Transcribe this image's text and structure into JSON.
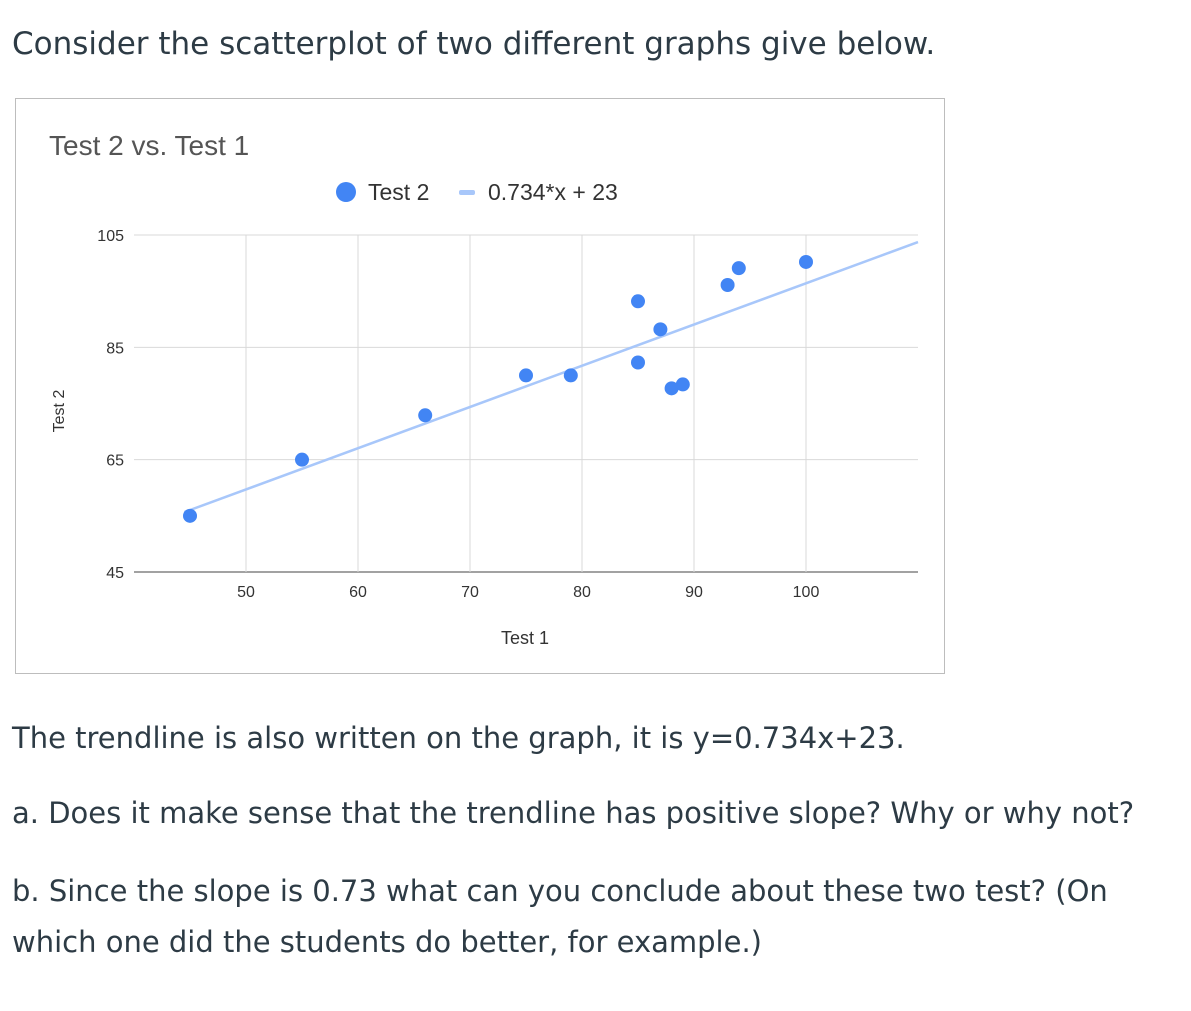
{
  "intro": "Consider the scatterplot of two different graphs give below.",
  "paragraphs": {
    "trendline": "The trendline is also written on the graph, it is y=0.734x+23.",
    "a": "a.  Does it make sense that the trendline has positive slope?  Why or why not?",
    "b_line1": "b.  Since the slope is 0.73 what can you conclude about these two test?  (On",
    "b_line2": "which one did the students do better, for example.)"
  },
  "chart_data": {
    "type": "scatter",
    "title": "Test 2 vs. Test 1",
    "xlabel": "Test 1",
    "ylabel": "Test 2",
    "xlim": [
      40,
      110
    ],
    "ylim": [
      45,
      105
    ],
    "x_ticks": [
      "50",
      "60",
      "70",
      "80",
      "90",
      "100"
    ],
    "y_ticks": [
      "45",
      "65",
      "85",
      "105"
    ],
    "grid": true,
    "legend_position": "top",
    "series": [
      {
        "name": "Test 2",
        "color": "#4285f4",
        "points": [
          [
            45,
            55
          ],
          [
            55,
            65
          ],
          [
            66,
            72.9
          ],
          [
            75,
            80
          ],
          [
            79,
            80
          ],
          [
            85,
            93.2
          ],
          [
            85,
            82.3
          ],
          [
            87,
            88.2
          ],
          [
            88,
            77.7
          ],
          [
            89,
            78.4
          ],
          [
            93,
            96.1
          ],
          [
            94,
            99.1
          ],
          [
            100,
            100.2
          ]
        ]
      }
    ],
    "trendline": {
      "name": "0.734*x + 23",
      "slope": 0.734,
      "intercept": 23,
      "color": "#a8c7fa"
    }
  }
}
